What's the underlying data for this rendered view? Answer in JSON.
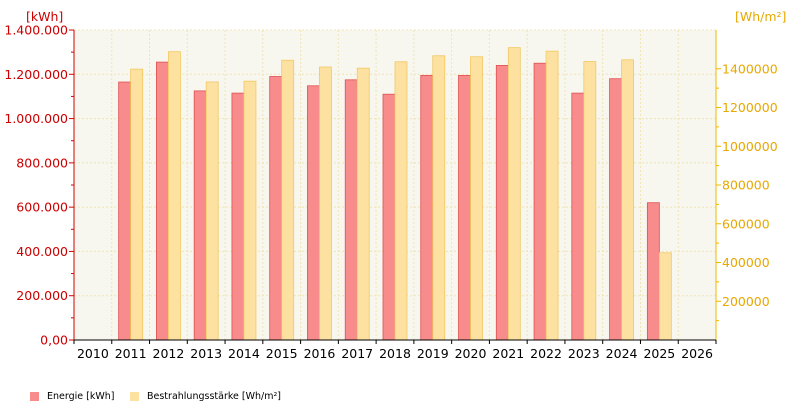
{
  "chart_data": {
    "type": "bar",
    "categories": [
      "2010",
      "2011",
      "2012",
      "2013",
      "2014",
      "2015",
      "2016",
      "2017",
      "2018",
      "2019",
      "2020",
      "2021",
      "2022",
      "2023",
      "2024",
      "2025",
      "2026"
    ],
    "series": [
      {
        "name": "Energie [kWh]",
        "axis": "left",
        "color": "#f88c8c",
        "values": [
          null,
          1165000,
          1255000,
          1125000,
          1115000,
          1190000,
          1148000,
          1175000,
          1110000,
          1195000,
          1195000,
          1240000,
          1250000,
          1115000,
          1180000,
          620000,
          null
        ]
      },
      {
        "name": "Bestrahlungsstärke [Wh/m²]",
        "axis": "right",
        "color": "#fce1a0",
        "values": [
          null,
          1398000,
          1488000,
          1332000,
          1336000,
          1444000,
          1409000,
          1403000,
          1436000,
          1467000,
          1462000,
          1509000,
          1491000,
          1437000,
          1446000,
          450000,
          null
        ]
      }
    ],
    "left_axis": {
      "unit": "[kWh]",
      "min": 0,
      "max": 1400000,
      "ticks": [
        0,
        200000,
        400000,
        600000,
        800000,
        1000000,
        1200000,
        1400000
      ],
      "tick_labels": [
        "0,00",
        "200.000",
        "400.000",
        "600.000",
        "800.000",
        "1.000.000",
        "1.200.000",
        "1.400.000"
      ]
    },
    "right_axis": {
      "unit": "[Wh/m²]",
      "min": 0,
      "max": 1600000,
      "ticks": [
        200000,
        400000,
        600000,
        800000,
        1000000,
        1200000,
        1400000
      ],
      "tick_labels": [
        "200000",
        "400000",
        "600000",
        "800000",
        "1000000",
        "1200000",
        "1400000"
      ]
    },
    "grid": true,
    "legend_position": "bottom-left"
  }
}
